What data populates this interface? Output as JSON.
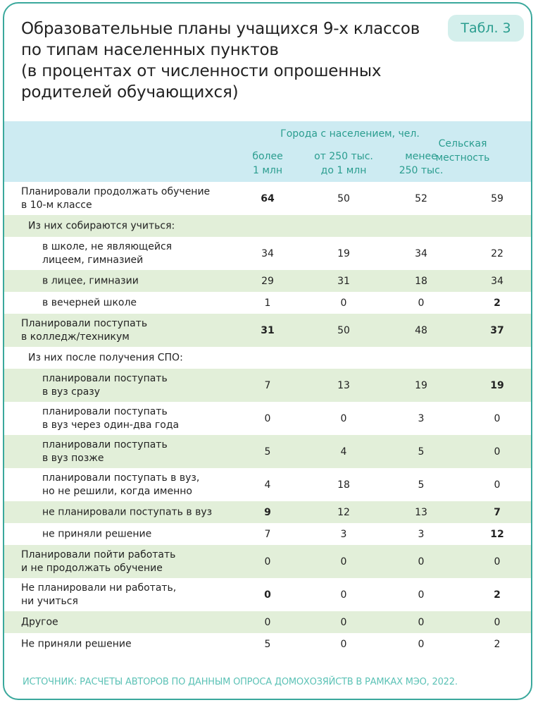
{
  "badge": "Табл. 3",
  "title": [
    "Образовательные планы учащихся 9-х классов",
    "по типам населенных пунктов",
    "(в процентах от численности опрошенных",
    "родителей обучающихся)"
  ],
  "header": {
    "group": "Города с населением, чел.",
    "cols": [
      [
        "более",
        "1 млн"
      ],
      [
        "от 250 тыс.",
        "до 1 млн"
      ],
      [
        "менее",
        "250 тыс."
      ]
    ],
    "rural": [
      "Сельская",
      "местность"
    ]
  },
  "rows": [
    {
      "label": [
        "Планировали продолжать обучение",
        "в 10-м классе"
      ],
      "level": 0,
      "values": [
        "64",
        "50",
        "52",
        "59"
      ],
      "bold": [
        0
      ]
    },
    {
      "label": [
        "Из них собираются учиться:"
      ],
      "level": 1,
      "values": [],
      "bold": []
    },
    {
      "label": [
        "в школе, не являющейся",
        "лицеем, гимназией"
      ],
      "level": 2,
      "values": [
        "34",
        "19",
        "34",
        "22"
      ],
      "bold": []
    },
    {
      "label": [
        "в лицее, гимназии"
      ],
      "level": 2,
      "values": [
        "29",
        "31",
        "18",
        "34"
      ],
      "bold": []
    },
    {
      "label": [
        "в вечерней школе"
      ],
      "level": 2,
      "values": [
        "1",
        "0",
        "0",
        "2"
      ],
      "bold": [
        3
      ]
    },
    {
      "label": [
        "Планировали поступать",
        "в колледж/техникум"
      ],
      "level": 0,
      "values": [
        "31",
        "50",
        "48",
        "37"
      ],
      "bold": [
        0,
        3
      ]
    },
    {
      "label": [
        "Из них после получения СПО:"
      ],
      "level": 1,
      "values": [],
      "bold": []
    },
    {
      "label": [
        "планировали поступать",
        "в вуз сразу"
      ],
      "level": 2,
      "values": [
        "7",
        "13",
        "19",
        "19"
      ],
      "bold": [
        3
      ]
    },
    {
      "label": [
        "планировали поступать",
        "в вуз через один-два года"
      ],
      "level": 2,
      "values": [
        "0",
        "0",
        "3",
        "0"
      ],
      "bold": []
    },
    {
      "label": [
        "планировали поступать",
        "в вуз позже"
      ],
      "level": 2,
      "values": [
        "5",
        "4",
        "5",
        "0"
      ],
      "bold": []
    },
    {
      "label": [
        "планировали поступать в вуз,",
        "но не решили, когда именно"
      ],
      "level": 2,
      "values": [
        "4",
        "18",
        "5",
        "0"
      ],
      "bold": []
    },
    {
      "label": [
        "не планировали поступать в вуз"
      ],
      "level": 2,
      "values": [
        "9",
        "12",
        "13",
        "7"
      ],
      "bold": [
        0,
        3
      ]
    },
    {
      "label": [
        "не приняли решение"
      ],
      "level": 2,
      "values": [
        "7",
        "3",
        "3",
        "12"
      ],
      "bold": [
        3
      ]
    },
    {
      "label": [
        "Планировали пойти работать",
        "и не продолжать обучение"
      ],
      "level": 0,
      "values": [
        "0",
        "0",
        "0",
        "0"
      ],
      "bold": []
    },
    {
      "label": [
        "Не планировали ни работать,",
        "ни учиться"
      ],
      "level": 0,
      "values": [
        "0",
        "0",
        "0",
        "2"
      ],
      "bold": [
        0,
        3
      ]
    },
    {
      "label": [
        "Другое"
      ],
      "level": 0,
      "values": [
        "0",
        "0",
        "0",
        "0"
      ],
      "bold": []
    },
    {
      "label": [
        "Не приняли решение"
      ],
      "level": 0,
      "values": [
        "5",
        "0",
        "0",
        "2"
      ],
      "bold": []
    }
  ],
  "source": "ИСТОЧНИК: РАСЧЕТЫ АВТОРОВ ПО ДАННЫМ ОПРОСА ДОМОХОЗЯЙСТВ В РАМКАХ МЭО, 2022.",
  "colors": {
    "accent": "#2a9d8f",
    "header_bg": "#cdebf2",
    "stripe": "#e2efd9"
  }
}
